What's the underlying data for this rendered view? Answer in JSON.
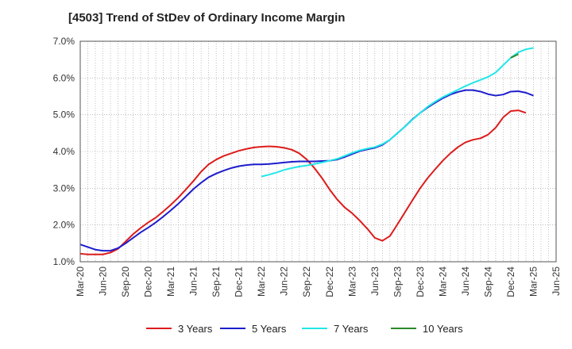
{
  "title": "[4503]  Trend of StDev of Ordinary Income Margin",
  "chart_data": {
    "type": "line",
    "title": "[4503]  Trend of StDev of Ordinary Income Margin",
    "xlabel": "",
    "ylabel": "",
    "ylim": [
      1.0,
      7.0
    ],
    "y_ticks": [
      "1.0%",
      "2.0%",
      "3.0%",
      "4.0%",
      "5.0%",
      "6.0%",
      "7.0%"
    ],
    "x_ticks": [
      "Mar-20",
      "Jun-20",
      "Sep-20",
      "Dec-20",
      "Mar-21",
      "Jun-21",
      "Sep-21",
      "Dec-21",
      "Mar-22",
      "Jun-22",
      "Sep-22",
      "Dec-22",
      "Mar-23",
      "Jun-23",
      "Sep-23",
      "Dec-23",
      "Mar-24",
      "Jun-24",
      "Sep-24",
      "Dec-24",
      "Mar-25",
      "Jun-25"
    ],
    "grid": true,
    "legend_position": "bottom",
    "series": [
      {
        "name": "3 Years",
        "color": "#dd1c1c",
        "start_month": 0,
        "values": [
          1.22,
          1.2,
          1.2,
          1.2,
          1.25,
          1.35,
          1.55,
          1.75,
          1.92,
          2.07,
          2.2,
          2.37,
          2.55,
          2.75,
          2.97,
          3.2,
          3.45,
          3.65,
          3.78,
          3.88,
          3.95,
          4.02,
          4.07,
          4.11,
          4.13,
          4.14,
          4.13,
          4.1,
          4.05,
          3.95,
          3.78,
          3.55,
          3.28,
          2.97,
          2.7,
          2.48,
          2.32,
          2.12,
          1.9,
          1.65,
          1.57,
          1.7,
          2.02,
          2.35,
          2.68,
          3.0,
          3.28,
          3.52,
          3.75,
          3.95,
          4.12,
          4.25,
          4.32,
          4.36,
          4.46,
          4.65,
          4.93,
          5.1,
          5.12,
          5.05
        ]
      },
      {
        "name": "5 Years",
        "color": "#1c1ccc",
        "start_month": 0,
        "values": [
          1.47,
          1.4,
          1.33,
          1.3,
          1.3,
          1.37,
          1.5,
          1.65,
          1.8,
          1.93,
          2.07,
          2.23,
          2.4,
          2.58,
          2.78,
          2.98,
          3.15,
          3.3,
          3.4,
          3.48,
          3.55,
          3.6,
          3.63,
          3.65,
          3.65,
          3.66,
          3.68,
          3.7,
          3.72,
          3.73,
          3.73,
          3.73,
          3.74,
          3.75,
          3.78,
          3.85,
          3.93,
          4.01,
          4.06,
          4.1,
          4.18,
          4.32,
          4.5,
          4.68,
          4.88,
          5.05,
          5.2,
          5.33,
          5.45,
          5.55,
          5.62,
          5.67,
          5.67,
          5.63,
          5.56,
          5.52,
          5.55,
          5.63,
          5.64,
          5.6,
          5.52
        ]
      },
      {
        "name": "7 Years",
        "color": "#22e6e6",
        "start_month": 24,
        "values": [
          3.32,
          3.37,
          3.43,
          3.5,
          3.55,
          3.59,
          3.62,
          3.66,
          3.7,
          3.75,
          3.8,
          3.88,
          3.96,
          4.03,
          4.08,
          4.12,
          4.2,
          4.32,
          4.5,
          4.68,
          4.87,
          5.05,
          5.22,
          5.36,
          5.48,
          5.58,
          5.68,
          5.78,
          5.87,
          5.95,
          6.03,
          6.15,
          6.35,
          6.55,
          6.7,
          6.78,
          6.82
        ]
      },
      {
        "name": "10 Years",
        "color": "#2a8a2a",
        "start_month": 57,
        "values": [
          6.55,
          6.65
        ]
      }
    ]
  }
}
